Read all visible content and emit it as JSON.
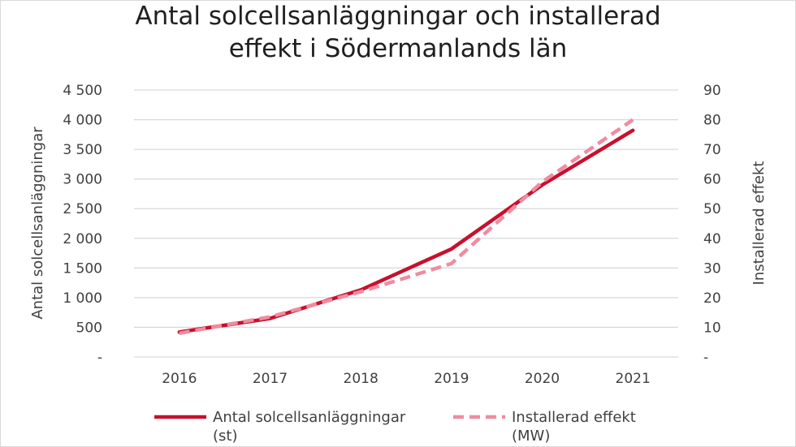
{
  "chart_data": {
    "type": "line",
    "title_lines": [
      "Antal solcellsanläggningar och installerad",
      "effekt i Södermanlands län"
    ],
    "categories": [
      "2016",
      "2017",
      "2018",
      "2019",
      "2020",
      "2021"
    ],
    "y_left": {
      "label": "Antal solcellsanläggningar",
      "range": [
        0,
        4500
      ],
      "tick_values": [
        0,
        500,
        1000,
        1500,
        2000,
        2500,
        3000,
        3500,
        4000,
        4500
      ],
      "tick_labels": [
        "-",
        "500",
        "1 000",
        "1 500",
        "2 000",
        "2 500",
        "3 000",
        "3 500",
        "4 000",
        "4 500"
      ]
    },
    "y_right": {
      "label": "Installerad effekt",
      "range": [
        0,
        90
      ],
      "tick_values": [
        0,
        10,
        20,
        30,
        40,
        50,
        60,
        70,
        80,
        90
      ],
      "tick_labels": [
        "-",
        "10",
        "20",
        "30",
        "40",
        "50",
        "60",
        "70",
        "80",
        "90"
      ]
    },
    "grid": true,
    "legend_position": "bottom",
    "series": [
      {
        "name_lines": [
          "Antal solcellsanläggningar",
          "(st)"
        ],
        "axis": "left",
        "style": "solid",
        "color": "#c8102e",
        "values": [
          420,
          650,
          1130,
          1820,
          2900,
          3820
        ]
      },
      {
        "name_lines": [
          "Installerad effekt",
          "(MW)"
        ],
        "axis": "right",
        "style": "dashed",
        "color": "#f08ca0",
        "values": [
          8,
          13.5,
          22,
          31.5,
          59,
          80
        ]
      }
    ]
  }
}
